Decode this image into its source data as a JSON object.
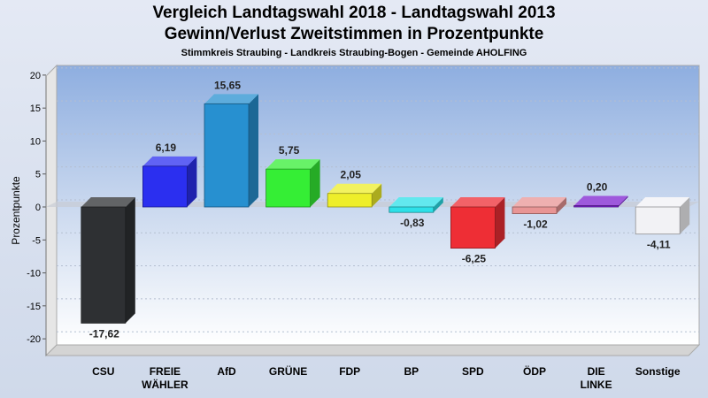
{
  "chart_data": {
    "type": "bar",
    "title": "Vergleich Landtagswahl 2018 - Landtagswahl 2013",
    "subtitle": "Gewinn/Verlust Zweitstimmen in Prozentpunkte",
    "subsubtitle": "Stimmkreis Straubing - Landkreis Straubing-Bogen - Gemeinde AHOLFING",
    "ylabel": "Prozentpunkte",
    "ylim": [
      -22,
      22
    ],
    "yticks": [
      20,
      15,
      10,
      5,
      0,
      -5,
      -10,
      -15,
      -20
    ],
    "categories": [
      [
        "CSU"
      ],
      [
        "FREIE",
        "WÄHLER"
      ],
      [
        "AfD"
      ],
      [
        "GRÜNE"
      ],
      [
        "FDP"
      ],
      [
        "BP"
      ],
      [
        "SPD"
      ],
      [
        "ÖDP"
      ],
      [
        "DIE",
        "LINKE"
      ],
      [
        "Sonstige"
      ]
    ],
    "values": [
      -17.62,
      6.19,
      15.65,
      5.75,
      2.05,
      -0.83,
      -6.25,
      -1.02,
      0.2,
      -4.11
    ],
    "value_labels": [
      "-17,62",
      "6,19",
      "15,65",
      "5,75",
      "2,05",
      "-0,83",
      "-6,25",
      "-1,02",
      "0,20",
      "-4,11"
    ],
    "colors": [
      "#2e3033",
      "#2b2ff0",
      "#2790d0",
      "#35ee35",
      "#eeee2a",
      "#2de0e8",
      "#ee2e35",
      "#e89595",
      "#7d22d0",
      "#f2f2f5"
    ],
    "grid": true,
    "legend": "none"
  }
}
